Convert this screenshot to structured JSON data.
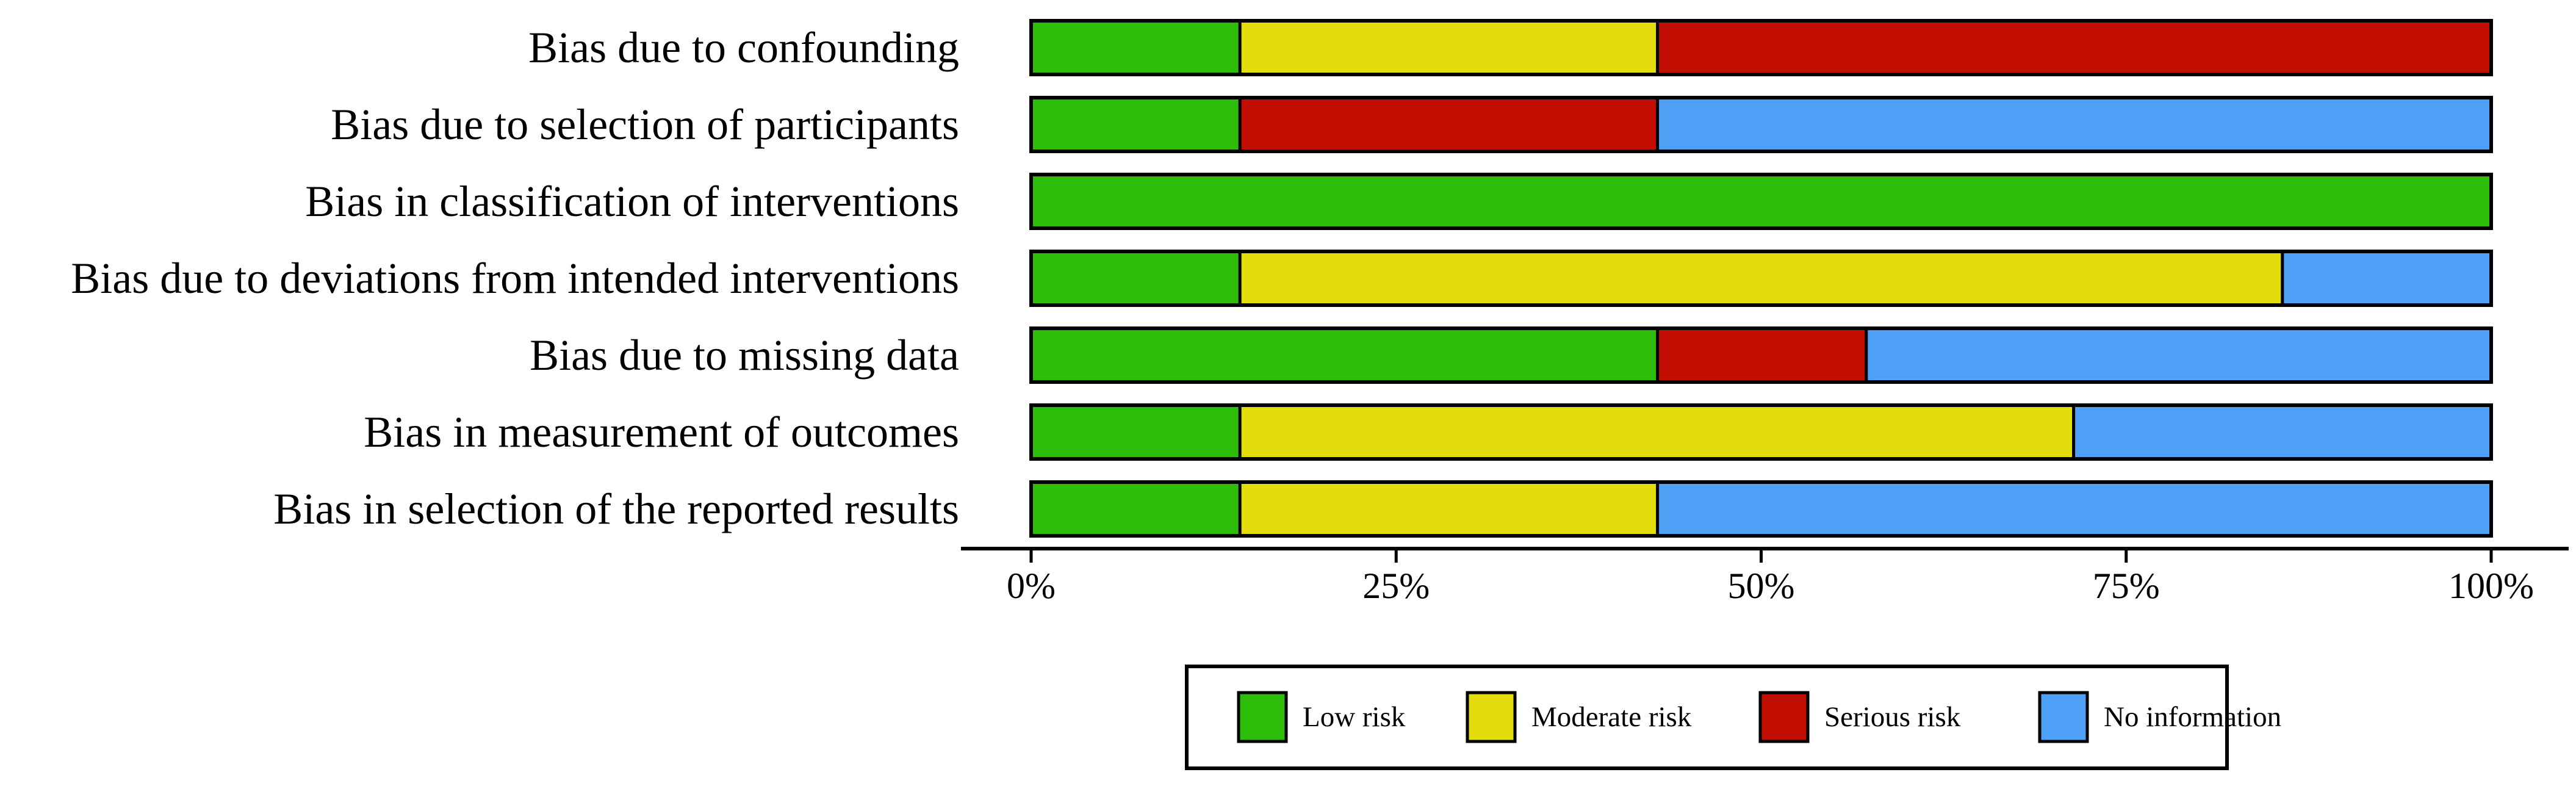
{
  "chart_data": {
    "type": "bar",
    "orientation": "horizontal",
    "stacked": true,
    "percent": true,
    "title": "",
    "xlabel": "",
    "ylabel": "",
    "xlim": [
      0,
      100
    ],
    "x_ticks": [
      "0%",
      "25%",
      "50%",
      "75%",
      "100%"
    ],
    "categories": [
      "Bias due to confounding",
      "Bias due to selection of participants",
      "Bias in classification of interventions",
      "Bias due to deviations from intended interventions",
      "Bias due to missing data",
      "Bias in measurement of outcomes",
      "Bias in selection of the reported results"
    ],
    "series": [
      {
        "name": "Low risk",
        "color": "#2DBE0A",
        "values": [
          14.3,
          14.3,
          100,
          14.3,
          42.9,
          14.3,
          14.3
        ]
      },
      {
        "name": "Moderate risk",
        "color": "#E3DD0C",
        "values": [
          28.6,
          0,
          0,
          71.4,
          0,
          57.1,
          28.6
        ]
      },
      {
        "name": "Serious risk",
        "color": "#C10D02",
        "values": [
          57.1,
          28.6,
          0,
          0,
          14.3,
          0,
          0
        ]
      },
      {
        "name": "No information",
        "color": "#4FA1F7",
        "values": [
          0,
          57.1,
          0,
          14.3,
          42.9,
          28.6,
          57.1
        ]
      }
    ],
    "legend_position": "bottom",
    "grid": false
  }
}
